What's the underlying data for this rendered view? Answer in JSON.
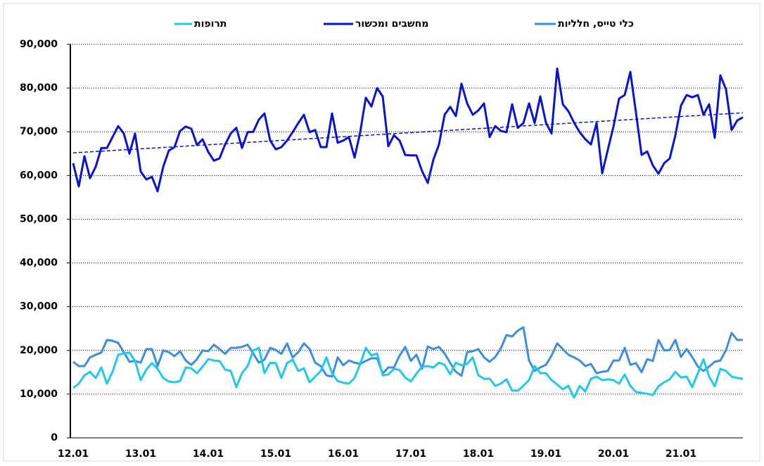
{
  "chart_data": {
    "type": "line",
    "categories": [
      "12.01",
      null,
      null,
      null,
      null,
      null,
      null,
      null,
      null,
      null,
      null,
      null,
      "13.01",
      null,
      null,
      null,
      null,
      null,
      null,
      null,
      null,
      null,
      null,
      null,
      "14.01",
      null,
      null,
      null,
      null,
      null,
      null,
      null,
      null,
      null,
      null,
      null,
      "15.01",
      null,
      null,
      null,
      null,
      null,
      null,
      null,
      null,
      null,
      null,
      null,
      "16.01",
      null,
      null,
      null,
      null,
      null,
      null,
      null,
      null,
      null,
      null,
      null,
      "17.01",
      null,
      null,
      null,
      null,
      null,
      null,
      null,
      null,
      null,
      null,
      null,
      "18.01",
      null,
      null,
      null,
      null,
      null,
      null,
      null,
      null,
      null,
      null,
      null,
      "19.01",
      null,
      null,
      null,
      null,
      null,
      null,
      null,
      null,
      null,
      null,
      null,
      "20.01",
      null,
      null,
      null,
      null,
      null,
      null,
      null,
      null,
      null,
      null,
      null,
      "21.01",
      null,
      null,
      null,
      null,
      null,
      null,
      null,
      null,
      null,
      null,
      null
    ],
    "series": [
      {
        "name": "כלי טייס, חלליות",
        "color": "#3a8ee6",
        "values": [
          17400,
          16400,
          16400,
          18400,
          19000,
          19500,
          22400,
          22200,
          21700,
          19600,
          17400,
          17600,
          17200,
          20300,
          20300,
          16400,
          20000,
          19600,
          18700,
          19800,
          17700,
          16700,
          18000,
          20000,
          19800,
          21300,
          20300,
          19200,
          20600,
          20600,
          20800,
          21300,
          19300,
          17200,
          17900,
          20600,
          20100,
          19200,
          21600,
          18400,
          19600,
          21600,
          20300,
          17200,
          16400,
          14300,
          14000,
          18400,
          16600,
          17700,
          17200,
          16900,
          17600,
          18200,
          18200,
          14700,
          16100,
          16100,
          18800,
          20800,
          17600,
          19000,
          15800,
          20900,
          20300,
          20800,
          19300,
          17100,
          15100,
          14200,
          19600,
          19800,
          20300,
          18400,
          17400,
          18500,
          20500,
          23500,
          23200,
          24500,
          25300,
          17700,
          15300,
          16100,
          16700,
          18800,
          21600,
          20300,
          19000,
          18400,
          17700,
          16400,
          16900,
          14800,
          15100,
          15300,
          17700,
          17700,
          20600,
          16700,
          17100,
          15000,
          18000,
          17600,
          22400,
          20000,
          20100,
          22400,
          18500,
          20300,
          18500,
          16300,
          15300,
          16300,
          17400,
          17700,
          20100,
          24000,
          22400,
          22400
        ]
      },
      {
        "name": "מחשבים ומכשור",
        "color": "#0a14cc",
        "trend": true,
        "values": [
          62800,
          57500,
          64400,
          59400,
          62000,
          66300,
          66300,
          68800,
          71300,
          69600,
          65000,
          69600,
          60900,
          59100,
          59700,
          56400,
          62000,
          65700,
          66500,
          70200,
          71200,
          70700,
          67000,
          68300,
          65400,
          63400,
          63900,
          67100,
          69600,
          70900,
          66300,
          69900,
          70000,
          72800,
          74200,
          68000,
          66000,
          66500,
          68000,
          69900,
          72000,
          73900,
          69900,
          70400,
          66500,
          66500,
          74200,
          67500,
          68000,
          68800,
          64100,
          69900,
          77800,
          75800,
          80000,
          78100,
          66700,
          69200,
          68000,
          64700,
          64600,
          64600,
          61000,
          58300,
          63600,
          67100,
          73900,
          75700,
          73600,
          81000,
          76500,
          73900,
          74900,
          76500,
          68800,
          71300,
          70200,
          69900,
          76300,
          70900,
          72000,
          76500,
          72000,
          78100,
          72100,
          69600,
          84500,
          76300,
          74700,
          72100,
          69900,
          68300,
          67100,
          72000,
          60500,
          65900,
          71200,
          77600,
          78400,
          83700,
          74400,
          64700,
          65500,
          62300,
          60400,
          62800,
          63900,
          69200,
          76000,
          78400,
          77900,
          78400,
          73900,
          76300,
          68600,
          82900,
          79700,
          70400,
          72600,
          73300
        ]
      },
      {
        "name": "תרופות",
        "color": "#1ec8ef",
        "values": [
          11400,
          12400,
          14300,
          15100,
          13700,
          16100,
          12400,
          15100,
          19000,
          19300,
          19500,
          17600,
          13200,
          15600,
          17100,
          15800,
          13700,
          12900,
          12700,
          13000,
          16100,
          15900,
          14800,
          16300,
          18000,
          17700,
          17600,
          15600,
          15300,
          11600,
          14800,
          16400,
          20000,
          20600,
          14800,
          17200,
          17100,
          13700,
          17100,
          17900,
          15300,
          15900,
          12700,
          14000,
          15300,
          18400,
          14800,
          13000,
          12600,
          12400,
          13700,
          16900,
          20600,
          18800,
          19300,
          14300,
          14500,
          15800,
          15500,
          13800,
          12900,
          14700,
          16300,
          16400,
          16100,
          17200,
          16700,
          14500,
          17200,
          16600,
          16900,
          18400,
          14300,
          13500,
          13500,
          11900,
          12400,
          13400,
          10800,
          10800,
          11900,
          13200,
          16400,
          14800,
          14800,
          13200,
          12200,
          11100,
          11900,
          9200,
          11900,
          10600,
          13500,
          14000,
          13200,
          13400,
          13200,
          12400,
          14500,
          11900,
          10500,
          10300,
          10100,
          9800,
          11800,
          12700,
          13400,
          15100,
          13800,
          14000,
          11600,
          14800,
          18000,
          14000,
          11800,
          15800,
          15300,
          14000,
          13700,
          13500
        ]
      }
    ],
    "ylim": [
      0,
      90000
    ],
    "yticks": [
      0,
      {
        "value": 10000,
        "label": "10,000"
      },
      {
        "value": 20000,
        "label": "20,000"
      },
      {
        "value": 30000,
        "label": "30,000"
      },
      {
        "value": 40000,
        "label": "40,000"
      },
      {
        "value": 50000,
        "label": "50,000"
      },
      {
        "value": 60000,
        "label": "60,000"
      },
      {
        "value": 70000,
        "label": "70,000"
      },
      {
        "value": 80000,
        "label": "80,000"
      },
      {
        "value": 90000,
        "label": "90,000"
      }
    ],
    "grid": true
  }
}
